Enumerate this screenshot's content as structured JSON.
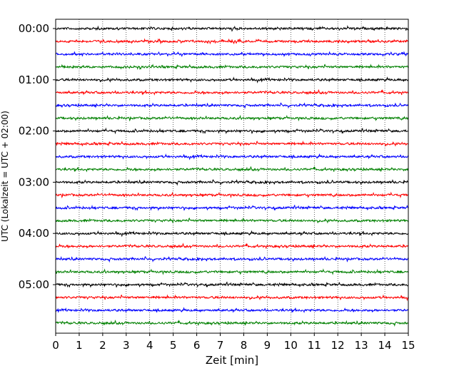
{
  "chart_data": {
    "type": "line",
    "title": "",
    "xlabel": "Zeit  [min]",
    "ylabel": "UTC (Lokalzeit = UTC + 02:00)",
    "xlim": [
      0,
      15
    ],
    "x_ticks": [
      "0",
      "1",
      "2",
      "3",
      "4",
      "5",
      "6",
      "7",
      "8",
      "9",
      "10",
      "11",
      "12",
      "13",
      "14",
      "15"
    ],
    "y_ticks": [
      "00:00",
      "01:00",
      "02:00",
      "03:00",
      "04:00",
      "05:00"
    ],
    "trace_interval_minutes": 15,
    "vertical_grid": "dotted at each minute",
    "color_cycle": [
      "#000000",
      "#ff0000",
      "#0000ff",
      "#008000"
    ],
    "series": [
      {
        "start": "00:00",
        "color": "#000000"
      },
      {
        "start": "00:15",
        "color": "#ff0000"
      },
      {
        "start": "00:30",
        "color": "#0000ff"
      },
      {
        "start": "00:45",
        "color": "#008000"
      },
      {
        "start": "01:00",
        "color": "#000000"
      },
      {
        "start": "01:15",
        "color": "#ff0000"
      },
      {
        "start": "01:30",
        "color": "#0000ff"
      },
      {
        "start": "01:45",
        "color": "#008000"
      },
      {
        "start": "02:00",
        "color": "#000000"
      },
      {
        "start": "02:15",
        "color": "#ff0000"
      },
      {
        "start": "02:30",
        "color": "#0000ff"
      },
      {
        "start": "02:45",
        "color": "#008000"
      },
      {
        "start": "03:00",
        "color": "#000000"
      },
      {
        "start": "03:15",
        "color": "#ff0000"
      },
      {
        "start": "03:30",
        "color": "#0000ff"
      },
      {
        "start": "03:45",
        "color": "#008000"
      },
      {
        "start": "04:00",
        "color": "#000000"
      },
      {
        "start": "04:15",
        "color": "#ff0000"
      },
      {
        "start": "04:30",
        "color": "#0000ff"
      },
      {
        "start": "04:45",
        "color": "#008000"
      },
      {
        "start": "05:00",
        "color": "#000000"
      },
      {
        "start": "05:15",
        "color": "#ff0000"
      },
      {
        "start": "05:30",
        "color": "#0000ff"
      },
      {
        "start": "05:45",
        "color": "#008000"
      }
    ]
  }
}
